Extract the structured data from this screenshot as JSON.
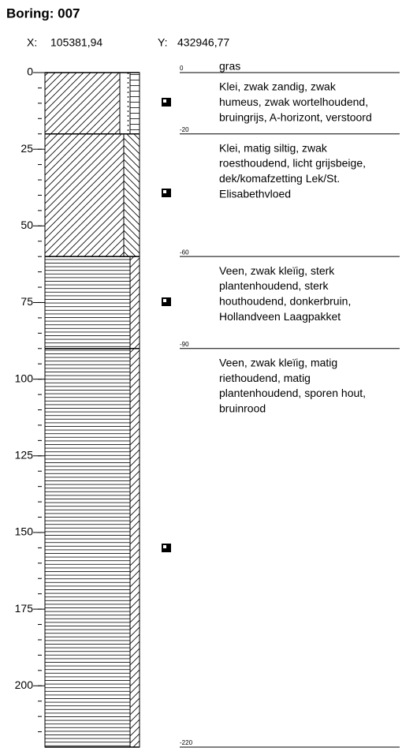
{
  "header": {
    "title": "Boring: 007",
    "x_label": "X:",
    "x_value": "105381,94",
    "y_label": "Y:",
    "y_value": "432946,77"
  },
  "depth_axis": {
    "ylim": [
      0,
      220
    ],
    "yticks": [
      0,
      25,
      50,
      75,
      100,
      125,
      150,
      175,
      200
    ]
  },
  "surface_text": "gras",
  "boundaries": [
    0,
    -20,
    -60,
    -90,
    -220
  ],
  "descriptions": [
    [
      "Klei, zwak zandig, zwak",
      "humeus, zwak wortelhoudend,",
      "bruingrijs, A-horizont, verstoord"
    ],
    [
      "Klei, matig siltig, zwak",
      "roesthoudend, licht grijsbeige,",
      "dek/komafzetting Lek/St.",
      "Elisabethvloed"
    ],
    [
      "Veen, zwak kleïig, sterk",
      "plantenhoudend, sterk",
      "houthoudend, donkerbruin,",
      "Hollandveen Laagpakket"
    ],
    [
      "Veen, zwak kleïig, matig",
      "riethoudend, matig",
      "plantenhoudend, sporen hout,",
      "bruinrood"
    ]
  ]
}
